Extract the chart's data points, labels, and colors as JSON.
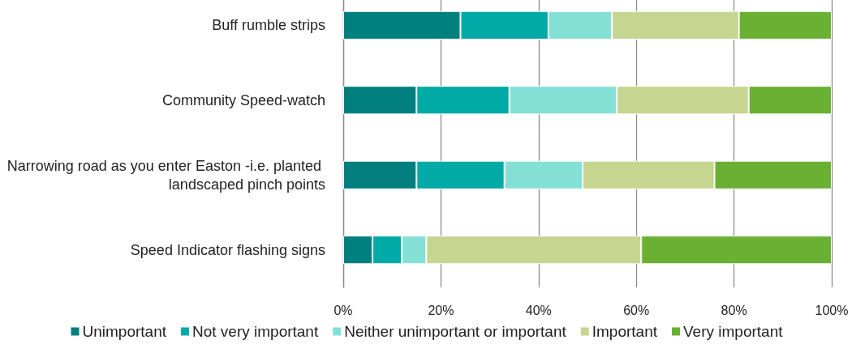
{
  "chart_data": {
    "type": "bar",
    "orientation": "horizontal",
    "stacked": true,
    "categories": [
      "Buff rumble strips",
      "Community Speed-watch",
      "Narrowing road as you enter Easton -i.e. planted landscaped pinch points",
      "Speed Indicator flashing signs"
    ],
    "series": [
      {
        "name": "Unimportant",
        "color": "#007f7f",
        "values": [
          24,
          15,
          15,
          6
        ]
      },
      {
        "name": "Not very important",
        "color": "#00aaa7",
        "values": [
          18,
          19,
          18,
          6
        ]
      },
      {
        "name": "Neither unimportant or important",
        "color": "#84e0d5",
        "values": [
          13,
          22,
          16,
          5
        ]
      },
      {
        "name": "Important",
        "color": "#c6d590",
        "values": [
          26,
          27,
          27,
          44
        ]
      },
      {
        "name": "Very important",
        "color": "#6ab133",
        "values": [
          19,
          17,
          24,
          39
        ]
      }
    ],
    "xlim": [
      0,
      100
    ],
    "xticks": [
      {
        "value": 0,
        "label": "0%"
      },
      {
        "value": 20,
        "label": "20%"
      },
      {
        "value": 40,
        "label": "40%"
      },
      {
        "value": 60,
        "label": "60%"
      },
      {
        "value": 80,
        "label": "80%"
      },
      {
        "value": 100,
        "label": "100%"
      }
    ],
    "grid": "x",
    "legend": "bottom"
  }
}
